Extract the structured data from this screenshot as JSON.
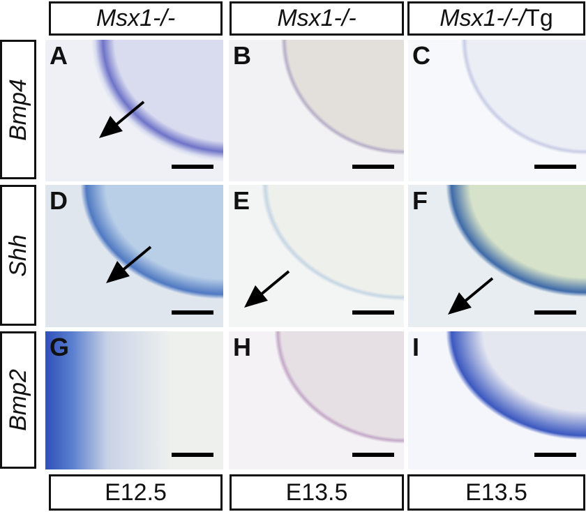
{
  "column_headers": [
    {
      "genotype": "Msx1-/-",
      "suffix": ""
    },
    {
      "genotype": "Msx1-/-",
      "suffix": ""
    },
    {
      "genotype": "Msx1-/-/",
      "suffix": "Tg"
    }
  ],
  "row_labels": [
    "Bmp4",
    "Shh",
    "Bmp2"
  ],
  "panels": [
    {
      "letter": "A",
      "arrow": true
    },
    {
      "letter": "B",
      "arrow": false
    },
    {
      "letter": "C",
      "arrow": false
    },
    {
      "letter": "D",
      "arrow": true
    },
    {
      "letter": "E",
      "arrow": true
    },
    {
      "letter": "F",
      "arrow": true
    },
    {
      "letter": "G",
      "arrow": false
    },
    {
      "letter": "H",
      "arrow": false
    },
    {
      "letter": "I",
      "arrow": false
    }
  ],
  "column_footers": [
    "E12.5",
    "E13.5",
    "E13.5"
  ],
  "colors": {
    "stain_blue": "#3a5fc0",
    "tissue_bg": "#dfe3ef",
    "border": "#111111"
  }
}
